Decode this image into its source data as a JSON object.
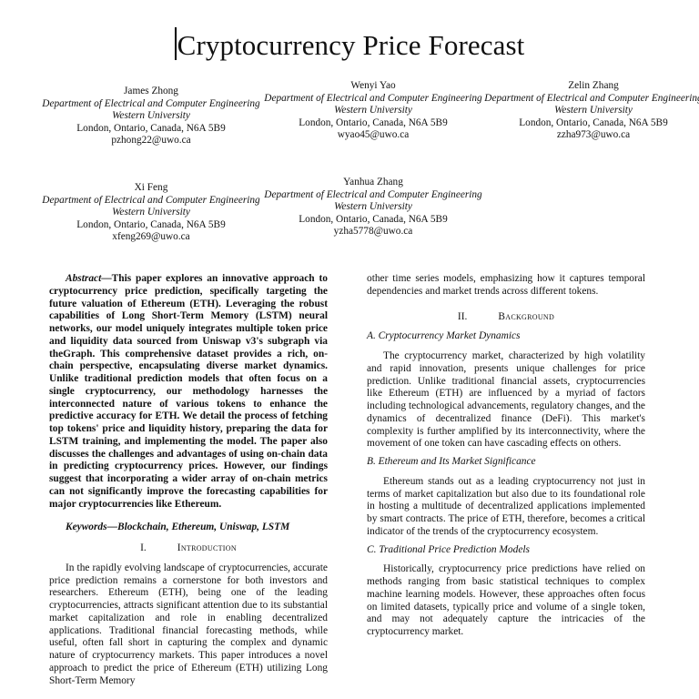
{
  "title": "Cryptocurrency Price Forecast",
  "authors": [
    {
      "name": "James Zhong",
      "dept": "Department of Electrical and Computer Engineering",
      "univ": "Western University",
      "addr": "London, Ontario, Canada, N6A 5B9",
      "email": "pzhong22@uwo.ca"
    },
    {
      "name": "Wenyi Yao",
      "dept": "Department of Electrical and Computer Engineering",
      "univ": "Western University",
      "addr": "London, Ontario, Canada, N6A 5B9",
      "email": "wyao45@uwo.ca"
    },
    {
      "name": "Zelin Zhang",
      "dept": "Department of Electrical and Computer Engineering",
      "univ": "Western University",
      "addr": "London, Ontario, Canada, N6A 5B9",
      "email": "zzha973@uwo.ca"
    },
    {
      "name": "Xi Feng",
      "dept": "Department of Electrical and Computer Engineering",
      "univ": "Western University",
      "addr": "London, Ontario, Canada, N6A 5B9",
      "email": "xfeng269@uwo.ca"
    },
    {
      "name": "Yanhua Zhang",
      "dept": "Department of Electrical and Computer Engineering",
      "univ": "Western University",
      "addr": "London, Ontario, Canada, N6A 5B9",
      "email": "yzha5778@uwo.ca"
    }
  ],
  "abstract": {
    "lead": "Abstract",
    "dash": "—",
    "text": "This paper explores an innovative approach to cryptocurrency price prediction, specifically targeting the future valuation of Ethereum (ETH). Leveraging the robust capabilities of Long Short-Term Memory (LSTM) neural networks, our model uniquely integrates multiple token price and liquidity data sourced from Uniswap v3's subgraph via theGraph. This comprehensive dataset provides a rich, on-chain perspective, encapsulating diverse market dynamics. Unlike traditional prediction models that often focus on a single cryptocurrency, our methodology harnesses the interconnected nature of various tokens to enhance the predictive accuracy for ETH. We detail the process of fetching top tokens' price and liquidity history, preparing the data for LSTM training, and implementing the model. The paper also discusses the challenges and advantages of using on-chain data in predicting cryptocurrency prices. However, our findings suggest that incorporating a wider array of on-chain metrics can not significantly improve the forecasting capabilities for major cryptocurrencies like Ethereum."
  },
  "keywords": {
    "lead": "Keywords",
    "dash": "—",
    "text": "Blockchain, Ethereum, Uniswap, LSTM"
  },
  "sections": {
    "intro": {
      "num": "I.",
      "name": "Introduction",
      "para": "In the rapidly evolving landscape of cryptocurrencies, accurate price prediction remains a cornerstone for both investors and researchers. Ethereum (ETH), being one of the leading cryptocurrencies, attracts significant attention due to its substantial market capitalization and role in enabling decentralized applications. Traditional financial forecasting methods, while useful, often fall short in capturing the complex and dynamic nature of cryptocurrency markets. This paper introduces a novel approach to predict the price of Ethereum (ETH) utilizing Long Short-Term Memory",
      "continued": "other time series models, emphasizing how it captures temporal dependencies and market trends across different tokens."
    },
    "background": {
      "num": "II.",
      "name": "Background",
      "sub_a": {
        "head": "A. Cryptocurrency Market Dynamics",
        "para": "The cryptocurrency market, characterized by high volatility and rapid innovation, presents unique challenges for price prediction. Unlike traditional financial assets, cryptocurrencies like Ethereum (ETH) are influenced by a myriad of factors including technological advancements, regulatory changes, and the dynamics of decentralized finance (DeFi). This market's complexity is further amplified by its interconnectivity, where the movement of one token can have cascading effects on others."
      },
      "sub_b": {
        "head": "B. Ethereum and Its Market Significance",
        "para": "Ethereum stands out as a leading cryptocurrency not just in terms of market capitalization but also due to its foundational role in hosting a multitude of decentralized applications implemented by smart contracts. The price of ETH, therefore, becomes a critical indicator of the trends of the cryptocurrency ecosystem."
      },
      "sub_c": {
        "head": "C. Traditional Price Prediction Models",
        "para": "Historically, cryptocurrency price predictions have relied on methods ranging from basic statistical techniques to complex machine learning models. However, these approaches often focus on limited datasets, typically price and volume of a single token, and may not adequately capture the intricacies of the cryptocurrency market."
      }
    }
  }
}
